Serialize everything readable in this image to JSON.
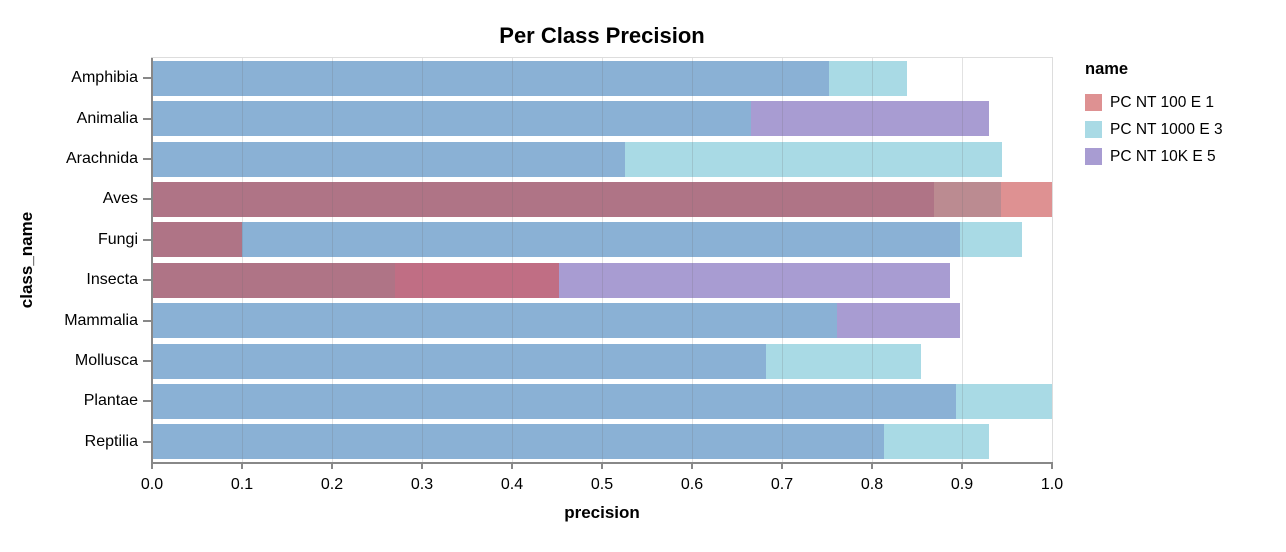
{
  "title": "Per Class Precision",
  "legend": {
    "title": "name",
    "items": [
      {
        "label": "PC NT 100 E 1",
        "key": "red"
      },
      {
        "label": "PC NT 1000 E 3",
        "key": "lightblue"
      },
      {
        "label": "PC NT 10K E 5",
        "key": "purple"
      }
    ]
  },
  "chart_data": {
    "type": "bar",
    "orientation": "horizontal",
    "title": "Per Class Precision",
    "xlabel": "precision",
    "ylabel": "class_name",
    "xlim": [
      0,
      1
    ],
    "x_ticks": [
      0.0,
      0.1,
      0.2,
      0.3,
      0.4,
      0.5,
      0.6,
      0.7,
      0.8,
      0.9,
      1.0
    ],
    "grid": true,
    "legend_position": "right",
    "categories": [
      "Amphibia",
      "Animalia",
      "Arachnida",
      "Aves",
      "Fungi",
      "Insecta",
      "Mammalia",
      "Mollusca",
      "Plantae",
      "Reptilia"
    ],
    "series": [
      {
        "name": "PC NT 100 E 1",
        "key": "red",
        "color": "#de9192",
        "values": [
          null,
          null,
          null,
          1.0,
          0.1,
          0.452,
          null,
          null,
          null,
          null
        ]
      },
      {
        "name": "PC NT 1000 E 3",
        "key": "lightblue",
        "color": "#a9dae5",
        "values": [
          0.839,
          0.665,
          0.944,
          0.943,
          0.967,
          0.27,
          0.761,
          0.854,
          1.0,
          0.93
        ]
      },
      {
        "name": "PC NT 10K E 5",
        "key": "purple",
        "color": "#a89cd2",
        "values": [
          0.752,
          0.93,
          0.526,
          0.869,
          0.898,
          0.887,
          0.898,
          0.682,
          0.893,
          0.813
        ]
      }
    ],
    "overlap_blend_colors": {
      "red": "#de9192",
      "lightblue": "#a9dae5",
      "purple": "#a89cd2",
      "lightblue+purple": "#8ab1d5",
      "lightblue+red": "#bb8b91",
      "purple+red": "#c06e84",
      "lightblue+purple+red": "#af7486"
    }
  },
  "colors": {
    "axis_line": "#888888",
    "plot_border": "#dddddd",
    "background": "#ffffff",
    "text": "#000000"
  }
}
